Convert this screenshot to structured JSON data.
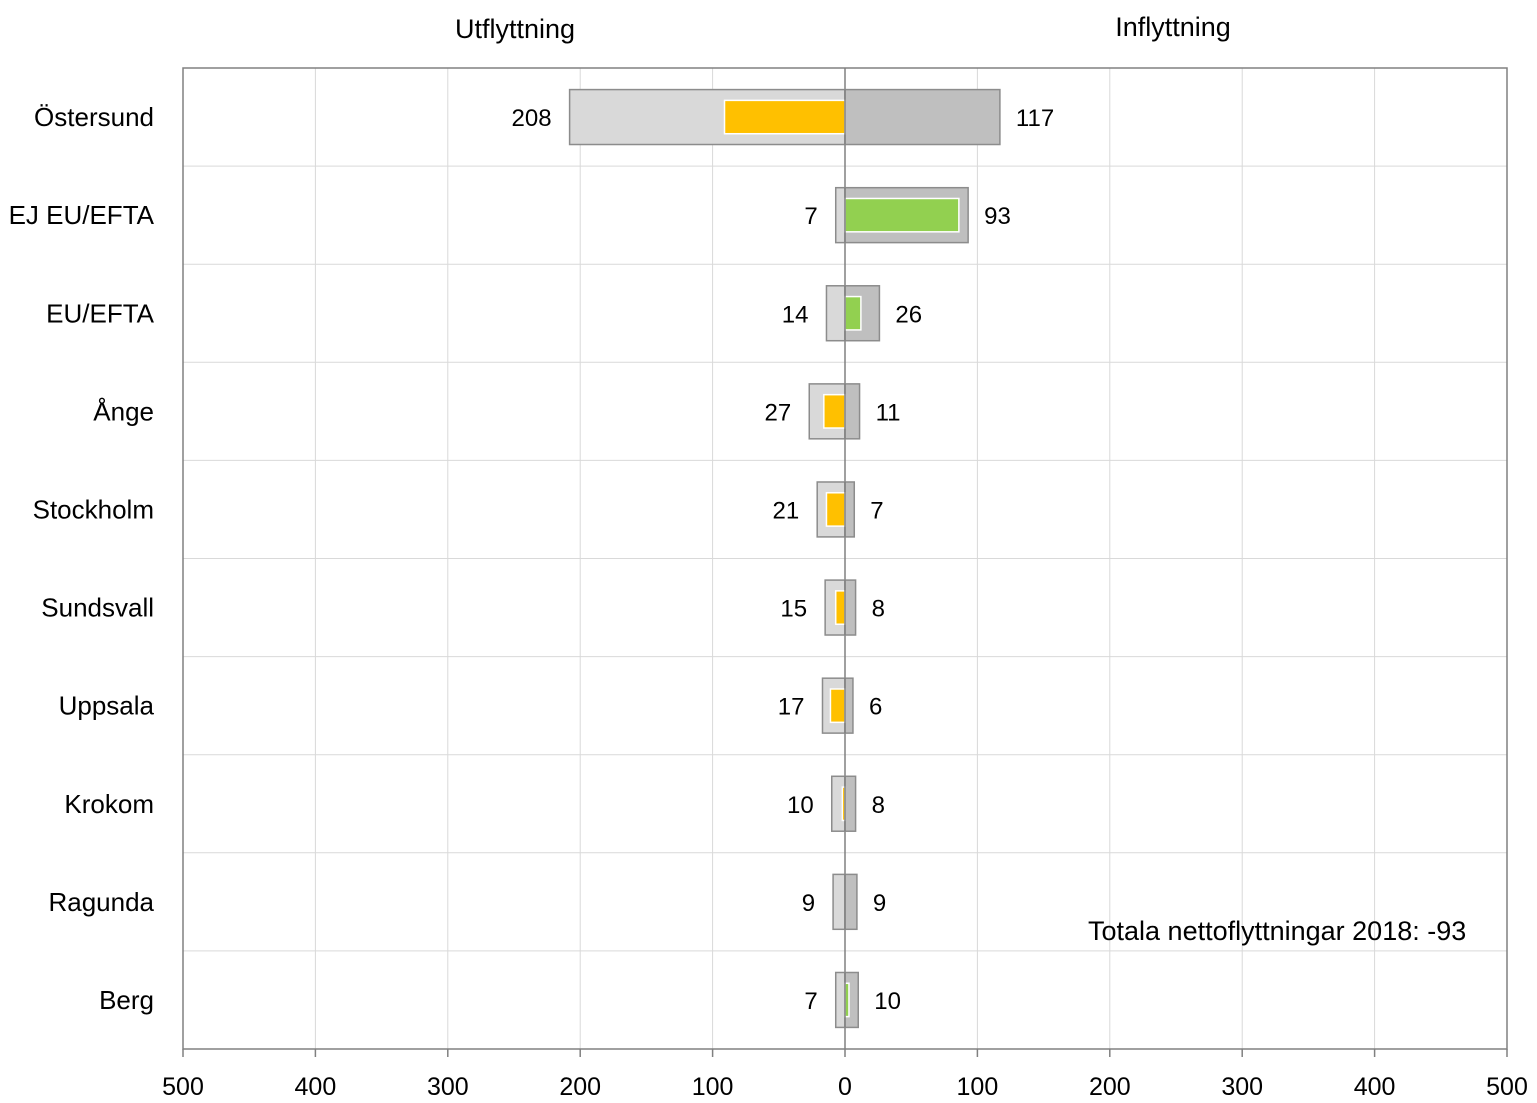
{
  "chart_data": {
    "type": "bar",
    "orientation": "horizontal",
    "headers": {
      "left": "Utflyttning",
      "right": "Inflyttning"
    },
    "categories": [
      "Östersund",
      "EJ EU/EFTA",
      "EU/EFTA",
      "Ånge",
      "Stockholm",
      "Sundsvall",
      "Uppsala",
      "Krokom",
      "Ragunda",
      "Berg"
    ],
    "series": [
      {
        "name": "Utflyttning",
        "values": [
          208,
          7,
          14,
          27,
          21,
          15,
          17,
          10,
          9,
          7
        ]
      },
      {
        "name": "Inflyttning",
        "values": [
          117,
          93,
          26,
          11,
          7,
          8,
          6,
          8,
          9,
          10
        ]
      }
    ],
    "net": [
      -91,
      86,
      12,
      -16,
      -14,
      -7,
      -11,
      -2,
      0,
      3
    ],
    "xlim": [
      -500,
      500
    ],
    "x_ticks": [
      -500,
      -400,
      -300,
      -200,
      -100,
      0,
      100,
      200,
      300,
      400,
      500
    ],
    "x_tick_labels": [
      "500",
      "400",
      "300",
      "200",
      "100",
      "0",
      "100",
      "200",
      "300",
      "400",
      "500"
    ],
    "annotation": "Totala nettoflyttningar 2018: -93",
    "grid": true,
    "colors": {
      "out_bar": "#d9d9d9",
      "in_bar": "#bfbfbf",
      "bar_border": "#8c8c8c",
      "net_negative": "#ffc000",
      "net_positive": "#92d050",
      "grid": "#d9d9d9",
      "axis": "#808080"
    }
  }
}
